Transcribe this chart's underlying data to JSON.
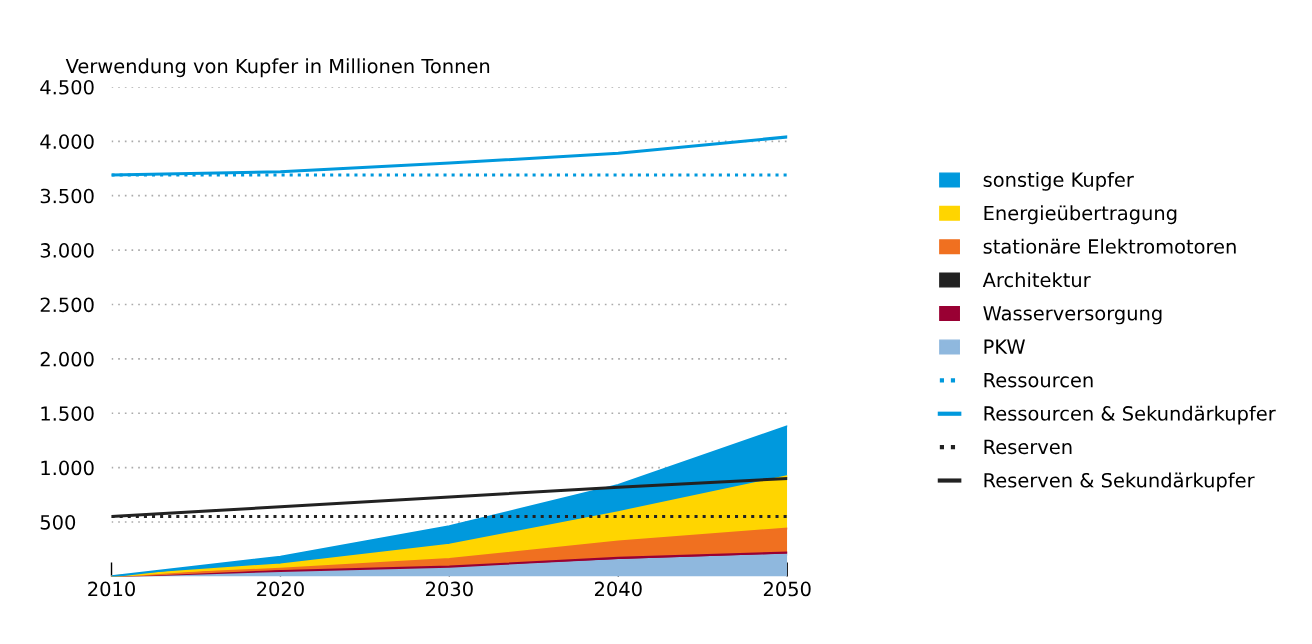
{
  "chart_data": {
    "type": "area",
    "stacked": true,
    "ylabel": "Verwendung von Kupfer in Millionen Tonnen",
    "x": [
      2010,
      2020,
      2030,
      2040,
      2050
    ],
    "xlim": [
      2010,
      2050
    ],
    "xticks": [
      2010,
      2020,
      2030,
      2040,
      2050
    ],
    "ylim": [
      0,
      4500
    ],
    "yticks": [
      {
        "value": 500,
        "label": "500"
      },
      {
        "value": 1000,
        "label": "1.000"
      },
      {
        "value": 1500,
        "label": "1.500"
      },
      {
        "value": 2000,
        "label": "2.000"
      },
      {
        "value": 2500,
        "label": "2.500"
      },
      {
        "value": 3000,
        "label": "3.000"
      },
      {
        "value": 3500,
        "label": "3.500"
      },
      {
        "value": 4000,
        "label": "4.000"
      },
      {
        "value": 4500,
        "label": "4.500"
      }
    ],
    "grid": "y",
    "legend": "right",
    "series": [
      {
        "name": "PKW",
        "color": "#8fb8de",
        "values": [
          0,
          40,
          80,
          150,
          200
        ]
      },
      {
        "name": "Wasserversorgung",
        "color": "#990033",
        "values": [
          0,
          10,
          10,
          20,
          20
        ]
      },
      {
        "name": "Architektur",
        "color": "#222222",
        "values": [
          null,
          null,
          null,
          null,
          null
        ]
      },
      {
        "name": "stationäre Elektromotoren",
        "color": "#f07020",
        "values": [
          0,
          20,
          70,
          150,
          220
        ]
      },
      {
        "name": "Energieübertragung",
        "color": "#ffd500",
        "values": [
          0,
          40,
          130,
          270,
          480
        ]
      },
      {
        "name": "sonstige Kupfer",
        "color": "#0099dd",
        "values": [
          0,
          70,
          170,
          250,
          460
        ]
      },
      {
        "name": "Ressourcen",
        "type": "line",
        "line_style": "dotted",
        "color": "#0099dd",
        "values": [
          3690,
          3690,
          3690,
          3690,
          3690
        ]
      },
      {
        "name": "Ressourcen & Sekundärkupfer",
        "type": "line",
        "line_style": "solid",
        "color": "#0099dd",
        "values": [
          3690,
          3720,
          3800,
          3890,
          4040
        ]
      },
      {
        "name": "Reserven",
        "type": "line",
        "line_style": "dotted",
        "color": "#222222",
        "values": [
          550,
          550,
          550,
          550,
          550
        ]
      },
      {
        "name": "Reserven & Sekundärkupfer",
        "type": "line",
        "line_style": "solid",
        "color": "#222222",
        "values": [
          550,
          640,
          730,
          820,
          900
        ]
      }
    ]
  }
}
